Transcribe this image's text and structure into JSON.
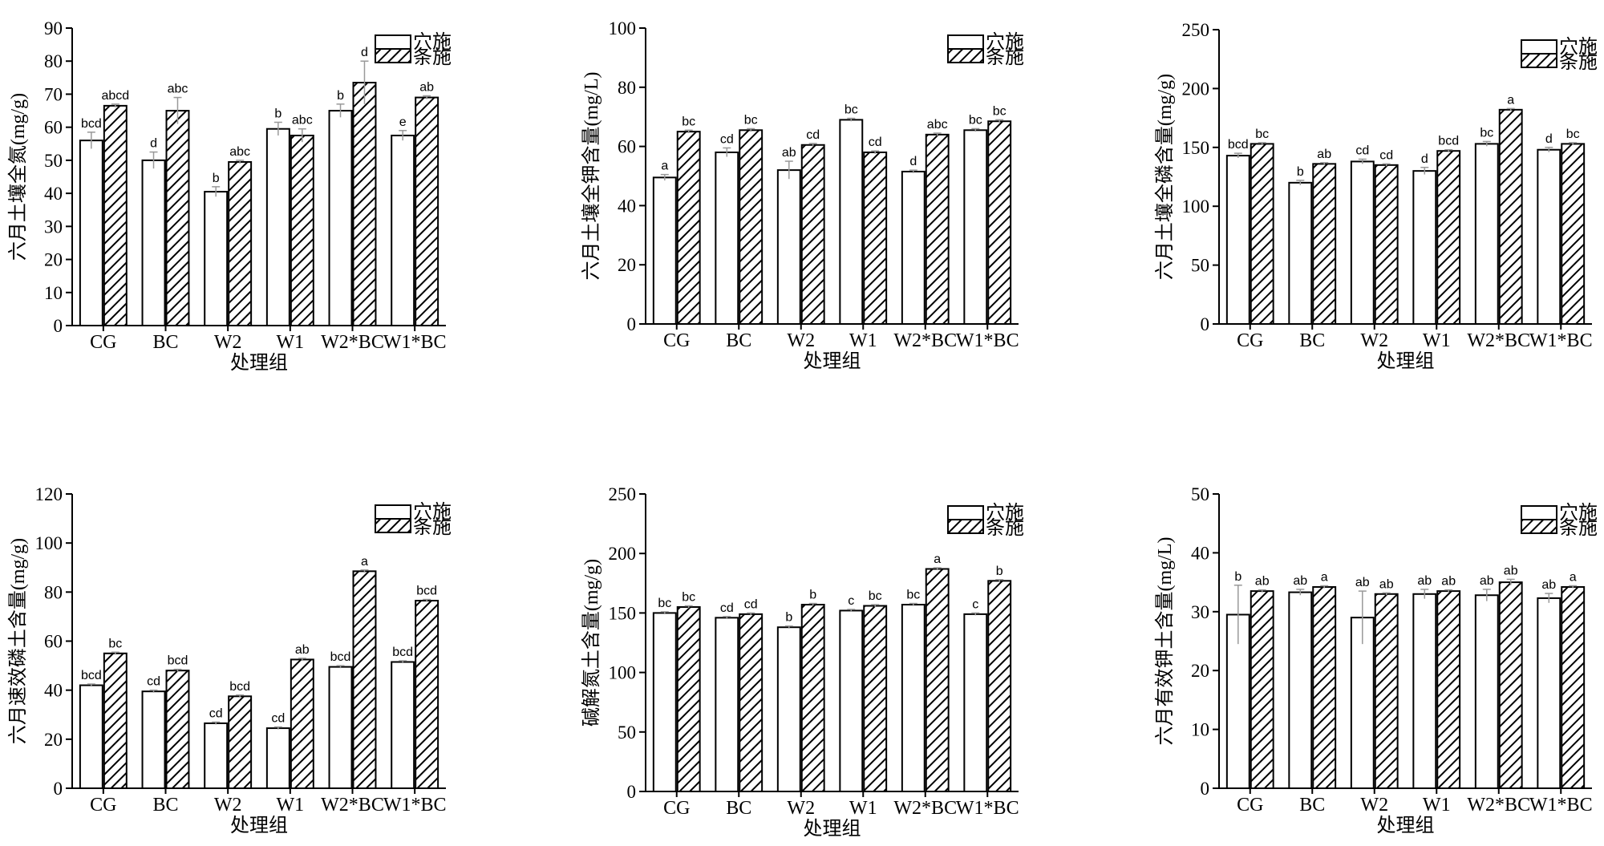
{
  "legend": {
    "items": [
      "穴施",
      "条施"
    ],
    "placement": "top-right"
  },
  "colors": {
    "axis": "#000000",
    "bar_fill": "#ffffff",
    "error_bar": "#999999",
    "hatch": "#000000"
  },
  "chart_data": [
    {
      "type": "bar",
      "categories": [
        "CG",
        "BC",
        "W2",
        "W1",
        "W2*BC",
        "W1*BC"
      ],
      "xlabel": "处理组",
      "ylabel": "六月土壤全氮(mg/g)",
      "ylim": [
        0,
        90
      ],
      "yticks": [
        0,
        10,
        20,
        30,
        40,
        50,
        60,
        70,
        80,
        90
      ],
      "series": [
        {
          "name": "穴施",
          "values": [
            56,
            50,
            40.5,
            59.5,
            65,
            57.5
          ],
          "errors": [
            2.5,
            2.5,
            1.5,
            2,
            2,
            1.5
          ],
          "labels": [
            "bcd",
            "d",
            "b",
            "b",
            "b",
            "e"
          ]
        },
        {
          "name": "条施",
          "values": [
            66.5,
            65,
            49.5,
            57.5,
            73.5,
            69
          ],
          "errors": [
            0.5,
            4,
            0.5,
            2,
            6.5,
            0.5
          ],
          "labels": [
            "abcd",
            "abc",
            "abc",
            "abc",
            "d",
            "ab"
          ]
        }
      ]
    },
    {
      "type": "bar",
      "categories": [
        "CG",
        "BC",
        "W2",
        "W1",
        "W2*BC",
        "W1*BC"
      ],
      "xlabel": "处理组",
      "ylabel": "六月土壤全钾含量(mg/L)",
      "ylim": [
        0,
        100
      ],
      "yticks": [
        0,
        20,
        40,
        60,
        80,
        100
      ],
      "series": [
        {
          "name": "穴施",
          "values": [
            49.5,
            58,
            52,
            69,
            51.5,
            65.5
          ],
          "errors": [
            1,
            1.5,
            3,
            0.5,
            0.5,
            0.5
          ],
          "labels": [
            "a",
            "cd",
            "ab",
            "bc",
            "d",
            "bc"
          ]
        },
        {
          "name": "条施",
          "values": [
            65,
            65.5,
            60.5,
            58,
            64,
            68.5
          ],
          "errors": [
            0.5,
            0.5,
            0.5,
            0.5,
            0.5,
            0.5
          ],
          "labels": [
            "bc",
            "bc",
            "cd",
            "cd",
            "abc",
            "bc"
          ]
        }
      ]
    },
    {
      "type": "bar",
      "categories": [
        "CG",
        "BC",
        "W2",
        "W1",
        "W2*BC",
        "W1*BC"
      ],
      "xlabel": "处理组",
      "ylabel": "六月土壤全磷含量(mg/g)",
      "ylim": [
        0,
        250
      ],
      "yticks": [
        0,
        50,
        100,
        150,
        200,
        250
      ],
      "series": [
        {
          "name": "穴施",
          "values": [
            143,
            120,
            138,
            130,
            153,
            148
          ],
          "errors": [
            2,
            2,
            2,
            3,
            2,
            2
          ],
          "labels": [
            "bcd",
            "b",
            "cd",
            "d",
            "bc",
            "d"
          ]
        },
        {
          "name": "条施",
          "values": [
            153,
            136,
            135,
            147,
            182,
            153
          ],
          "errors": [
            1,
            1,
            1,
            1,
            1,
            1
          ],
          "labels": [
            "bc",
            "ab",
            "cd",
            "bcd",
            "a",
            "bc"
          ]
        }
      ]
    },
    {
      "type": "bar",
      "categories": [
        "CG",
        "BC",
        "W2",
        "W1",
        "W2*BC",
        "W1*BC"
      ],
      "xlabel": "处理组",
      "ylabel": "六月速效磷土含量(mg/g)",
      "ylim": [
        0,
        120
      ],
      "yticks": [
        0,
        20,
        40,
        60,
        80,
        100,
        120
      ],
      "series": [
        {
          "name": "穴施",
          "values": [
            42,
            39.5,
            26.5,
            24.5,
            49.5,
            51.5
          ],
          "errors": [
            0.5,
            0.5,
            0.5,
            0.5,
            0.5,
            0.5
          ],
          "labels": [
            "bcd",
            "cd",
            "cd",
            "cd",
            "bcd",
            "bcd"
          ]
        },
        {
          "name": "条施",
          "values": [
            55,
            48,
            37.5,
            52.5,
            88.5,
            76.5
          ],
          "errors": [
            0.5,
            0.5,
            0.5,
            0.5,
            0.5,
            0.5
          ],
          "labels": [
            "bc",
            "bcd",
            "bcd",
            "ab",
            "a",
            "bcd"
          ]
        }
      ]
    },
    {
      "type": "bar",
      "categories": [
        "CG",
        "BC",
        "W2",
        "W1",
        "W2*BC",
        "W1*BC"
      ],
      "xlabel": "处理组",
      "ylabel": "碱解氮土含量(mg/g)",
      "ylim": [
        0,
        250
      ],
      "yticks": [
        0,
        50,
        100,
        150,
        200,
        250
      ],
      "series": [
        {
          "name": "穴施",
          "values": [
            150,
            146,
            138,
            152,
            157,
            149
          ],
          "errors": [
            1,
            1,
            1,
            1,
            1,
            1
          ],
          "labels": [
            "bc",
            "cd",
            "b",
            "c",
            "bc",
            "c"
          ]
        },
        {
          "name": "条施",
          "values": [
            155,
            149,
            157,
            156,
            187,
            177
          ],
          "errors": [
            1,
            1,
            1,
            1,
            1,
            1
          ],
          "labels": [
            "bc",
            "cd",
            "b",
            "bc",
            "a",
            "b"
          ]
        }
      ]
    },
    {
      "type": "bar",
      "categories": [
        "CG",
        "BC",
        "W2",
        "W1",
        "W2*BC",
        "W1*BC"
      ],
      "xlabel": "处理组",
      "ylabel": "六月有效钾土含量(mg/L)",
      "ylim": [
        0,
        50
      ],
      "yticks": [
        0,
        10,
        20,
        30,
        40,
        50
      ],
      "series": [
        {
          "name": "穴施",
          "values": [
            29.5,
            33.3,
            29,
            33,
            32.8,
            32.3
          ],
          "errors": [
            5,
            0.5,
            4.5,
            0.8,
            1,
            0.8
          ],
          "labels": [
            "b",
            "ab",
            "ab",
            "ab",
            "ab",
            "ab"
          ]
        },
        {
          "name": "条施",
          "values": [
            33.5,
            34.2,
            33,
            33.5,
            35,
            34.2
          ],
          "errors": [
            0.2,
            0.2,
            0.2,
            0.2,
            0.5,
            0.2
          ],
          "labels": [
            "ab",
            "a",
            "ab",
            "ab",
            "ab",
            "a"
          ]
        }
      ]
    }
  ]
}
